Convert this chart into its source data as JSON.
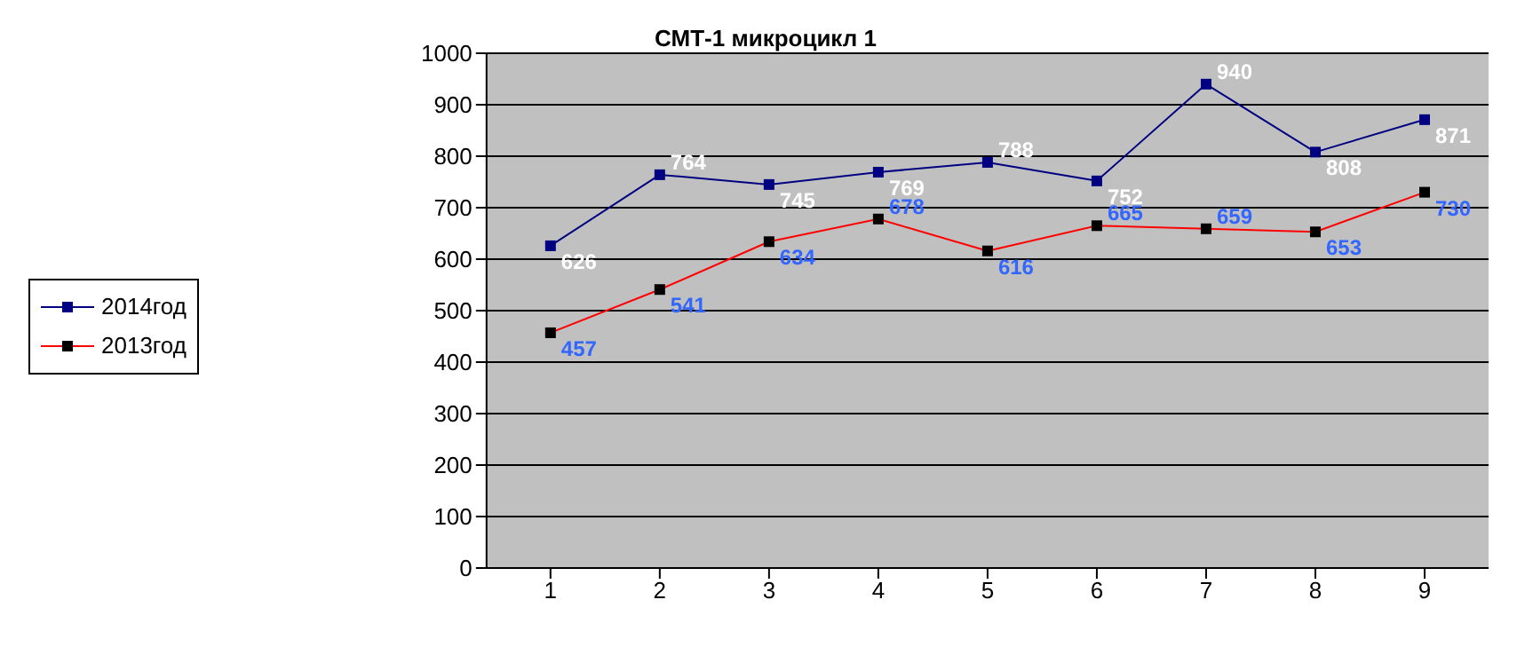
{
  "chart_data": {
    "type": "line",
    "title": "СМТ-1 микроцикл 1",
    "categories": [
      "1",
      "2",
      "3",
      "4",
      "5",
      "6",
      "7",
      "8",
      "9"
    ],
    "series": [
      {
        "name": "2014год",
        "color": "#000080",
        "values": [
          626,
          764,
          745,
          769,
          788,
          752,
          940,
          808,
          871
        ]
      },
      {
        "name": "2013год",
        "color": "#ff0000",
        "values": [
          457,
          541,
          634,
          678,
          616,
          665,
          659,
          653,
          730
        ]
      }
    ],
    "ylim": [
      0,
      1000
    ],
    "yticks": [
      0,
      100,
      200,
      300,
      400,
      500,
      600,
      700,
      800,
      900,
      1000
    ],
    "grid": "y",
    "legend": "left",
    "marker": "square",
    "data_labels": true
  }
}
